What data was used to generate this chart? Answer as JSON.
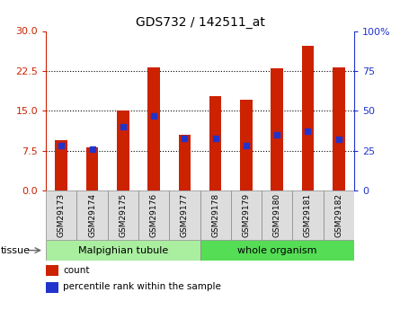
{
  "title": "GDS732 / 142511_at",
  "samples": [
    "GSM29173",
    "GSM29174",
    "GSM29175",
    "GSM29176",
    "GSM29177",
    "GSM29178",
    "GSM29179",
    "GSM29180",
    "GSM29181",
    "GSM29182"
  ],
  "counts": [
    9.5,
    8.2,
    15.0,
    23.2,
    10.5,
    17.8,
    17.0,
    23.0,
    27.2,
    23.2
  ],
  "percentile_ranks": [
    28,
    26,
    40,
    47,
    33,
    33,
    28,
    35,
    37,
    32
  ],
  "ylim_left": [
    0,
    30
  ],
  "ylim_right": [
    0,
    100
  ],
  "yticks_left": [
    0,
    7.5,
    15,
    22.5,
    30
  ],
  "yticks_right": [
    0,
    25,
    50,
    75,
    100
  ],
  "bar_color": "#CC2200",
  "dot_color": "#2233CC",
  "bar_width": 0.4,
  "tissue_groups": [
    {
      "label": "Malpighian tubule",
      "start": 0,
      "end": 4,
      "color": "#AAEEA0"
    },
    {
      "label": "whole organism",
      "start": 5,
      "end": 9,
      "color": "#55DD55"
    }
  ],
  "legend_items": [
    {
      "color": "#CC2200",
      "label": "count"
    },
    {
      "color": "#2233CC",
      "label": "percentile rank within the sample"
    }
  ]
}
